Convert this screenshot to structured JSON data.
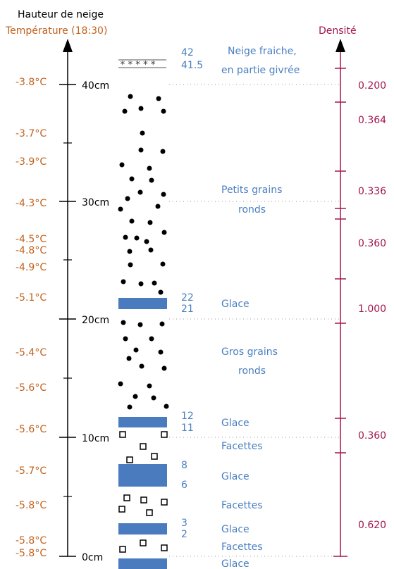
{
  "titles": {
    "height_axis": "Hauteur de neige",
    "temperature_axis": "Température (18:30)",
    "density_axis": "Densité"
  },
  "height_ticks": [
    "40cm",
    "30cm",
    "20cm",
    "10cm",
    "0cm"
  ],
  "temperatures": [
    "-3.8°C",
    "-3.7°C",
    "-3.9°C",
    "-4.3°C",
    "-4.5°C",
    "-4.8°C",
    "-4.9°C",
    "-5.1°C",
    "-5.4°C",
    "-5.6°C",
    "-5.6°C",
    "-5.7°C",
    "-5.8°C",
    "-5.8°C",
    "-5.8°C"
  ],
  "layer_heights": [
    "42",
    "41.5",
    "22",
    "21",
    "12",
    "11",
    "8",
    "6",
    "3",
    "2"
  ],
  "layer_names": [
    "Neige fraiche,",
    "en partie givrée",
    "Petits grains",
    "ronds",
    "Glace",
    "Gros grains",
    "ronds",
    "Glace",
    "Facettes",
    "Glace",
    "Facettes",
    "Glace",
    "Facettes",
    "Glace"
  ],
  "densities": [
    "0.200",
    "0.364",
    "0.336",
    "0.360",
    "1.000",
    "0.360",
    "0.620"
  ],
  "colors": {
    "temperature": "#c2621e",
    "density": "#a3164f",
    "labels": "#4a7fc0",
    "ice": "#4a7bbf"
  }
}
